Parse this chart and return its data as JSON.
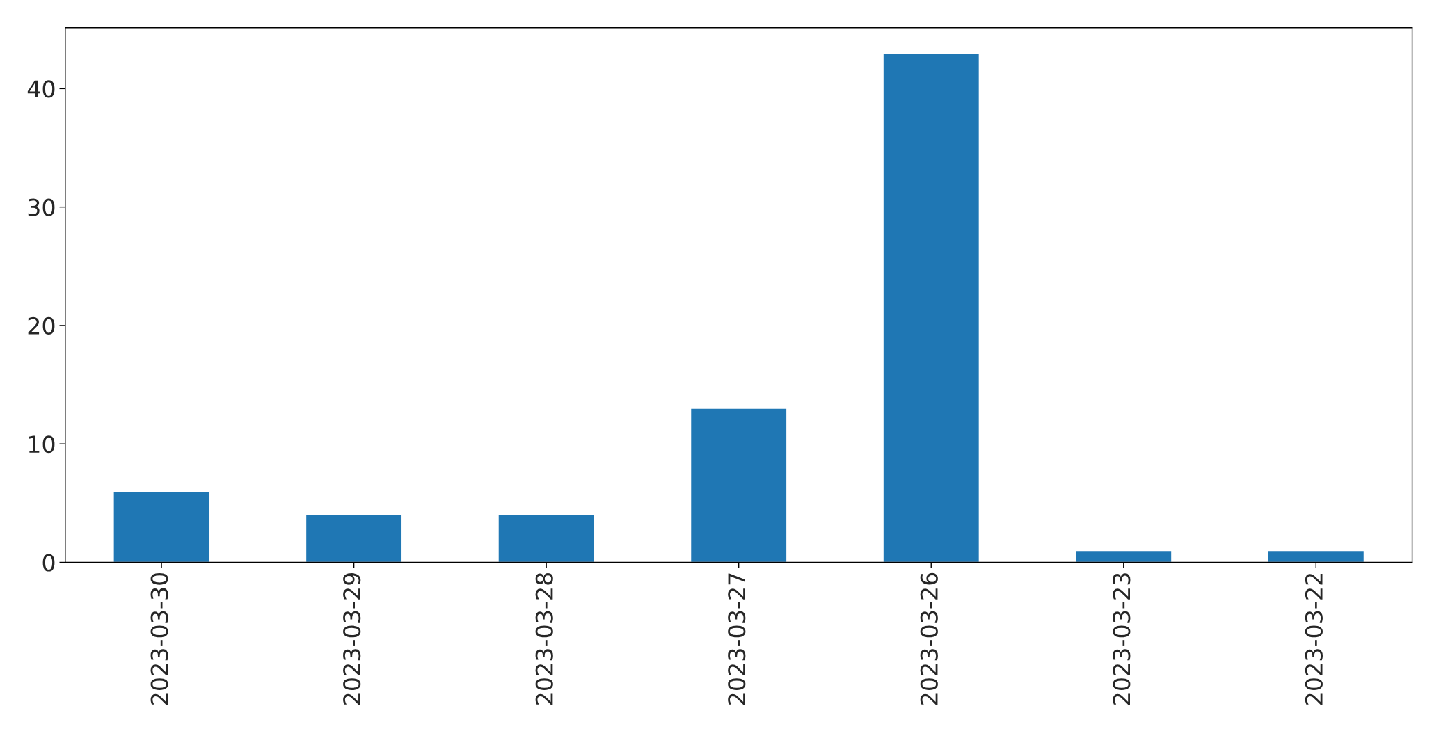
{
  "chart_data": {
    "type": "bar",
    "categories": [
      "2023-03-30",
      "2023-03-29",
      "2023-03-28",
      "2023-03-27",
      "2023-03-26",
      "2023-03-23",
      "2023-03-22"
    ],
    "values": [
      6,
      4,
      4,
      13,
      43,
      1,
      1
    ],
    "color": "#1f77b4",
    "ylim": [
      0,
      45.15
    ],
    "yticks": [
      0,
      10,
      20,
      30,
      40
    ],
    "grid": false,
    "legend": false
  }
}
